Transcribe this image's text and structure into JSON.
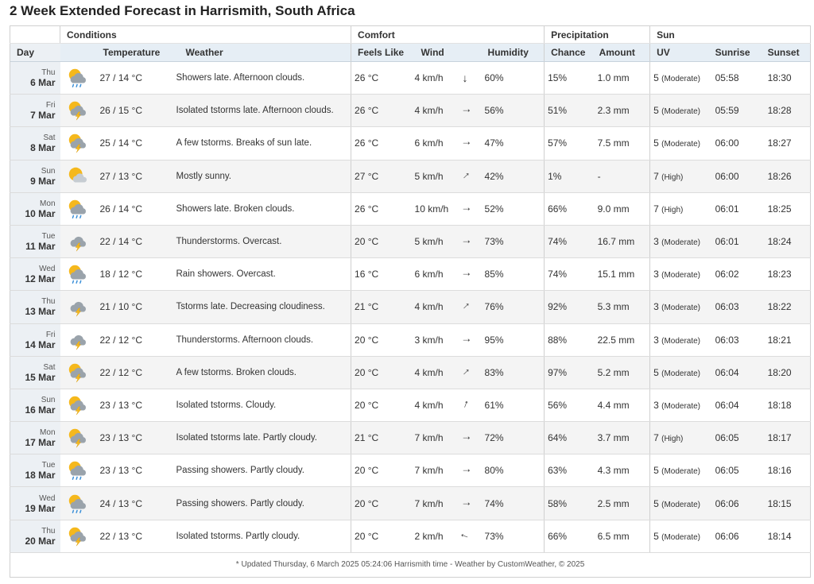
{
  "page_title": "2 Week Extended Forecast in Harrismith, South Africa",
  "group_headers": {
    "conditions": "Conditions",
    "comfort": "Comfort",
    "precipitation": "Precipitation",
    "sun": "Sun"
  },
  "column_headers": {
    "day": "Day",
    "temperature": "Temperature",
    "weather": "Weather",
    "feels_like": "Feels Like",
    "wind": "Wind",
    "humidity": "Humidity",
    "chance": "Chance",
    "amount": "Amount",
    "uv": "UV",
    "sunrise": "Sunrise",
    "sunset": "Sunset"
  },
  "rows": [
    {
      "dow": "Thu",
      "date": "6 Mar",
      "icon": "sun-cloud-rain-icon",
      "temp": "27 / 14 °C",
      "weather": "Showers late. Afternoon clouds.",
      "feels": "26 °C",
      "wind": "4 km/h",
      "wind_dir_deg": 0,
      "humidity": "60%",
      "chance": "15%",
      "amount": "1.0 mm",
      "uv_index": "5",
      "uv_level": "(Moderate)",
      "sunrise": "05:58",
      "sunset": "18:30"
    },
    {
      "dow": "Fri",
      "date": "7 Mar",
      "icon": "sun-cloud-thunder-icon",
      "temp": "26 / 15 °C",
      "weather": "Isolated tstorms late. Afternoon clouds.",
      "feels": "26 °C",
      "wind": "4 km/h",
      "wind_dir_deg": 270,
      "humidity": "56%",
      "chance": "51%",
      "amount": "2.3 mm",
      "uv_index": "5",
      "uv_level": "(Moderate)",
      "sunrise": "05:59",
      "sunset": "18:28"
    },
    {
      "dow": "Sat",
      "date": "8 Mar",
      "icon": "sun-cloud-thunder-icon",
      "temp": "25 / 14 °C",
      "weather": "A few tstorms. Breaks of sun late.",
      "feels": "26 °C",
      "wind": "6 km/h",
      "wind_dir_deg": 270,
      "humidity": "47%",
      "chance": "57%",
      "amount": "7.5 mm",
      "uv_index": "5",
      "uv_level": "(Moderate)",
      "sunrise": "06:00",
      "sunset": "18:27"
    },
    {
      "dow": "Sun",
      "date": "9 Mar",
      "icon": "sun-cloud-icon",
      "temp": "27 / 13 °C",
      "weather": "Mostly sunny.",
      "feels": "27 °C",
      "wind": "5 km/h",
      "wind_dir_deg": 225,
      "humidity": "42%",
      "chance": "1%",
      "amount": "-",
      "uv_index": "7",
      "uv_level": "(High)",
      "sunrise": "06:00",
      "sunset": "18:26"
    },
    {
      "dow": "Mon",
      "date": "10 Mar",
      "icon": "sun-cloud-rain-icon",
      "temp": "26 / 14 °C",
      "weather": "Showers late. Broken clouds.",
      "feels": "26 °C",
      "wind": "10 km/h",
      "wind_dir_deg": 270,
      "humidity": "52%",
      "chance": "66%",
      "amount": "9.0 mm",
      "uv_index": "7",
      "uv_level": "(High)",
      "sunrise": "06:01",
      "sunset": "18:25"
    },
    {
      "dow": "Tue",
      "date": "11 Mar",
      "icon": "cloud-thunder-icon",
      "temp": "22 / 14 °C",
      "weather": "Thunderstorms. Overcast.",
      "feels": "20 °C",
      "wind": "5 km/h",
      "wind_dir_deg": 270,
      "humidity": "73%",
      "chance": "74%",
      "amount": "16.7 mm",
      "uv_index": "3",
      "uv_level": "(Moderate)",
      "sunrise": "06:01",
      "sunset": "18:24"
    },
    {
      "dow": "Wed",
      "date": "12 Mar",
      "icon": "sun-cloud-rain-icon",
      "temp": "18 / 12 °C",
      "weather": "Rain showers. Overcast.",
      "feels": "16 °C",
      "wind": "6 km/h",
      "wind_dir_deg": 270,
      "humidity": "85%",
      "chance": "74%",
      "amount": "15.1 mm",
      "uv_index": "3",
      "uv_level": "(Moderate)",
      "sunrise": "06:02",
      "sunset": "18:23"
    },
    {
      "dow": "Thu",
      "date": "13 Mar",
      "icon": "cloud-thunder-icon",
      "temp": "21 / 10 °C",
      "weather": "Tstorms late. Decreasing cloudiness.",
      "feels": "21 °C",
      "wind": "4 km/h",
      "wind_dir_deg": 225,
      "humidity": "76%",
      "chance": "92%",
      "amount": "5.3 mm",
      "uv_index": "3",
      "uv_level": "(Moderate)",
      "sunrise": "06:03",
      "sunset": "18:22"
    },
    {
      "dow": "Fri",
      "date": "14 Mar",
      "icon": "cloud-thunder-icon",
      "temp": "22 / 12 °C",
      "weather": "Thunderstorms. Afternoon clouds.",
      "feels": "20 °C",
      "wind": "3 km/h",
      "wind_dir_deg": 270,
      "humidity": "95%",
      "chance": "88%",
      "amount": "22.5 mm",
      "uv_index": "3",
      "uv_level": "(Moderate)",
      "sunrise": "06:03",
      "sunset": "18:21"
    },
    {
      "dow": "Sat",
      "date": "15 Mar",
      "icon": "sun-cloud-thunder-icon",
      "temp": "22 / 12 °C",
      "weather": "A few tstorms. Broken clouds.",
      "feels": "20 °C",
      "wind": "4 km/h",
      "wind_dir_deg": 225,
      "humidity": "83%",
      "chance": "97%",
      "amount": "5.2 mm",
      "uv_index": "5",
      "uv_level": "(Moderate)",
      "sunrise": "06:04",
      "sunset": "18:20"
    },
    {
      "dow": "Sun",
      "date": "16 Mar",
      "icon": "sun-cloud-thunder-icon",
      "temp": "23 / 13 °C",
      "weather": "Isolated tstorms. Cloudy.",
      "feels": "20 °C",
      "wind": "4 km/h",
      "wind_dir_deg": 200,
      "humidity": "61%",
      "chance": "56%",
      "amount": "4.4 mm",
      "uv_index": "3",
      "uv_level": "(Moderate)",
      "sunrise": "06:04",
      "sunset": "18:18"
    },
    {
      "dow": "Mon",
      "date": "17 Mar",
      "icon": "sun-cloud-thunder-icon",
      "temp": "23 / 13 °C",
      "weather": "Isolated tstorms late. Partly cloudy.",
      "feels": "21 °C",
      "wind": "7 km/h",
      "wind_dir_deg": 270,
      "humidity": "72%",
      "chance": "64%",
      "amount": "3.7 mm",
      "uv_index": "7",
      "uv_level": "(High)",
      "sunrise": "06:05",
      "sunset": "18:17"
    },
    {
      "dow": "Tue",
      "date": "18 Mar",
      "icon": "sun-cloud-rain-icon",
      "temp": "23 / 13 °C",
      "weather": "Passing showers. Partly cloudy.",
      "feels": "20 °C",
      "wind": "7 km/h",
      "wind_dir_deg": 270,
      "humidity": "80%",
      "chance": "63%",
      "amount": "4.3 mm",
      "uv_index": "5",
      "uv_level": "(Moderate)",
      "sunrise": "06:05",
      "sunset": "18:16"
    },
    {
      "dow": "Wed",
      "date": "19 Mar",
      "icon": "sun-cloud-rain-icon",
      "temp": "24 / 13 °C",
      "weather": "Passing showers. Partly cloudy.",
      "feels": "20 °C",
      "wind": "7 km/h",
      "wind_dir_deg": 270,
      "humidity": "74%",
      "chance": "58%",
      "amount": "2.5 mm",
      "uv_index": "5",
      "uv_level": "(Moderate)",
      "sunrise": "06:06",
      "sunset": "18:15"
    },
    {
      "dow": "Thu",
      "date": "20 Mar",
      "icon": "sun-cloud-thunder-icon",
      "temp": "22 / 13 °C",
      "weather": "Isolated tstorms. Partly cloudy.",
      "feels": "20 °C",
      "wind": "2 km/h",
      "wind_dir_deg": 110,
      "humidity": "73%",
      "chance": "66%",
      "amount": "6.5 mm",
      "uv_index": "5",
      "uv_level": "(Moderate)",
      "sunrise": "06:06",
      "sunset": "18:14"
    }
  ],
  "footer": "* Updated Thursday, 6 March 2025 05:24:06 Harrismith time - Weather by CustomWeather, © 2025",
  "colors": {
    "sun": "#f5b81c",
    "cloud": "#9aa3ab",
    "lightning": "#f5b81c",
    "rain": "#3a8fd8",
    "day_column_bg": "#ecf0f4",
    "header_bg": "#e6eef5",
    "alt_row_bg": "#f4f4f4"
  }
}
